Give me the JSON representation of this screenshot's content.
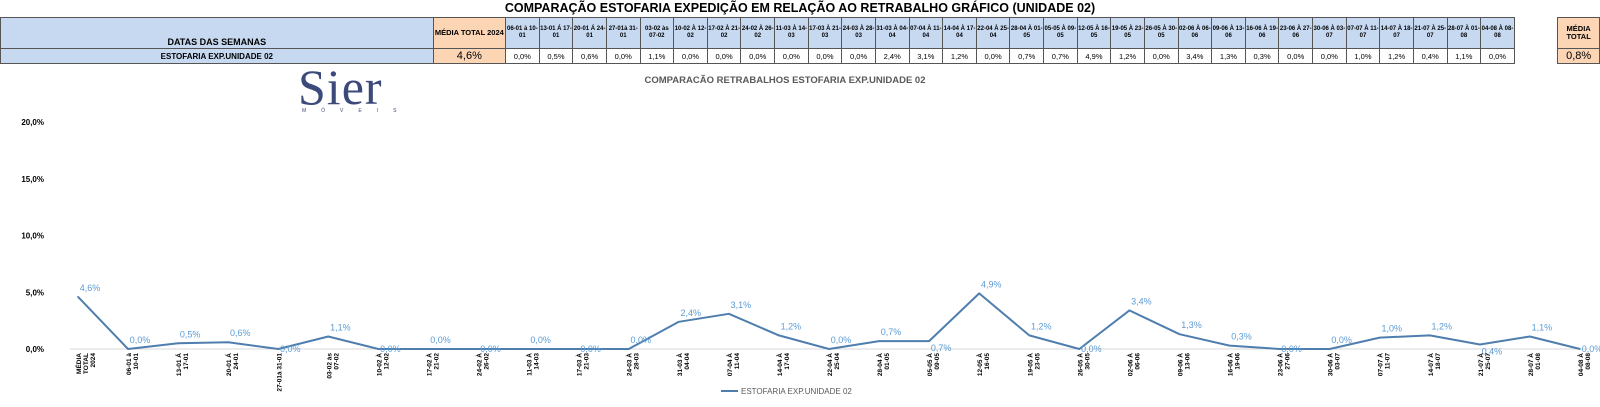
{
  "page_title": "COMPARAÇÃO ESTOFARIA EXPEDIÇÃO  EM RELAÇÃO AO RETRABALHO GRÁFICO (UNIDADE 02)",
  "table": {
    "row_header_label": "DATAS DAS SEMANAS",
    "row_label": "ESTOFARIA EXP.UNIDADE 02",
    "avg_2024_header": "MÉDIA TOTAL 2024",
    "avg_2024_value": "4,6%",
    "weeks": [
      {
        "label": "06-01 à 10-01",
        "value": "0,0%"
      },
      {
        "label": "13-01 Á 17-01",
        "value": "0,5%"
      },
      {
        "label": "20-01 Á 24-01",
        "value": "0,6%"
      },
      {
        "label": "27-01à 31-01",
        "value": "0,0%"
      },
      {
        "label": "03-02 às 07-02",
        "value": "1,1%"
      },
      {
        "label": "10-02 À 12-02",
        "value": "0,0%"
      },
      {
        "label": "17-02 À 21-02",
        "value": "0,0%"
      },
      {
        "label": "24-02 À 26-02",
        "value": "0,0%"
      },
      {
        "label": "11-03 À 14-03",
        "value": "0,0%"
      },
      {
        "label": "17-03 À 21-03",
        "value": "0,0%"
      },
      {
        "label": "24-03 À 28-03",
        "value": "0,0%"
      },
      {
        "label": "31-03 À 04-04",
        "value": "2,4%"
      },
      {
        "label": "07-04 À 11-04",
        "value": "3,1%"
      },
      {
        "label": "14-04 À 17-04",
        "value": "1,2%"
      },
      {
        "label": "22-04 À 25-04",
        "value": "0,0%"
      },
      {
        "label": "28-04 À 01-05",
        "value": "0,7%"
      },
      {
        "label": "05-05 À 09-05",
        "value": "0,7%"
      },
      {
        "label": "12-05 À 16-05",
        "value": "4,9%"
      },
      {
        "label": "19-05 À 23-05",
        "value": "1,2%"
      },
      {
        "label": "26-05 À 30-05",
        "value": "0,0%"
      },
      {
        "label": "02-06 À 06-06",
        "value": "3,4%"
      },
      {
        "label": "09-06 À 13-06",
        "value": "1,3%"
      },
      {
        "label": "16-06 À 19-06",
        "value": "0,3%"
      },
      {
        "label": "23-06 À 27-06",
        "value": "0,0%"
      },
      {
        "label": "30-06 À 03-07",
        "value": "0,0%"
      },
      {
        "label": "07-07 À 11-07",
        "value": "1,0%"
      },
      {
        "label": "14-07 À 18-07",
        "value": "1,2%"
      },
      {
        "label": "21-07 À 25-07",
        "value": "0,4%"
      },
      {
        "label": "28-07 À 01-08",
        "value": "1,1%"
      },
      {
        "label": "04-08 À 08-08",
        "value": "0,0%"
      }
    ],
    "avg_total_header": "MÉDIA TOTAL",
    "avg_total_value": "0,8%"
  },
  "logo": {
    "name": "Sier",
    "sub": "MÓVEIS"
  },
  "colors": {
    "line": "#4f7eae",
    "label": "#5b9bd5",
    "header_bg": "#c6d9f1",
    "avg_bg": "#fcd5b5"
  },
  "chart_data": {
    "type": "line",
    "title": "COMPARACÃO RETRABALHOS  ESTOFARIA EXP.UNIDADE 02",
    "categories": [
      "MÉDIA TOTAL 2024",
      "06-01 à 10-01",
      "13-01 Á 17-01",
      "20-01 Á 24-01",
      "27-01à 31-01",
      "03-02 às 07-02",
      "10-02 À 12-02",
      "17-02 À 21-02",
      "24-02 À 26-02",
      "11-03 À 14-03",
      "17-03 À 21-03",
      "24-03 À 28-03",
      "31-03 À 04-04",
      "07-04 À 11-04",
      "14-04 À 17-04",
      "22-04 À 25-04",
      "28-04 À 01-05",
      "05-05 À 09-05",
      "12-05 À 16-05",
      "19-05 À 23-05",
      "26-05 À 30-05",
      "02-06 À 06-06",
      "09-06 À 13-06",
      "16-06 À 19-06",
      "23-06 À 27-06",
      "30-06 À 03-07",
      "07-07 À 11-07",
      "14-07 À 18-07",
      "21-07 À 25-07",
      "28-07 À 01-08",
      "04-08 À 08-08"
    ],
    "series": [
      {
        "name": "ESTOFARIA EXP.UNIDADE 02",
        "values": [
          4.6,
          0.0,
          0.5,
          0.6,
          0.0,
          1.1,
          0.0,
          0.0,
          0.0,
          0.0,
          0.0,
          0.0,
          2.4,
          3.1,
          1.2,
          0.0,
          0.7,
          0.7,
          4.9,
          1.2,
          0.0,
          3.4,
          1.3,
          0.3,
          0.0,
          0.0,
          1.0,
          1.2,
          0.4,
          1.1,
          0.0
        ],
        "labels": [
          "4,6%",
          "0,0%",
          "0,5%",
          "0,6%",
          "0,0%",
          "1,1%",
          "0,0%",
          "0,0%",
          "0,0%",
          "0,0%",
          "0,0%",
          "0,0%",
          "2,4%",
          "3,1%",
          "1,2%",
          "0,0%",
          "0,7%",
          "0,7%",
          "4,9%",
          "1,2%",
          "0,0%",
          "3,4%",
          "1,3%",
          "0,3%",
          "0,0%",
          "0,0%",
          "1,0%",
          "1,2%",
          "0,4%",
          "1,1%",
          "0,0%"
        ]
      }
    ],
    "ylim": [
      0,
      20
    ],
    "yticks": [
      "0,0%",
      "5,0%",
      "10,0%",
      "15,0%",
      "20,0%"
    ],
    "legend": "bottom-center",
    "grid": false,
    "xlabel": "",
    "ylabel": ""
  }
}
